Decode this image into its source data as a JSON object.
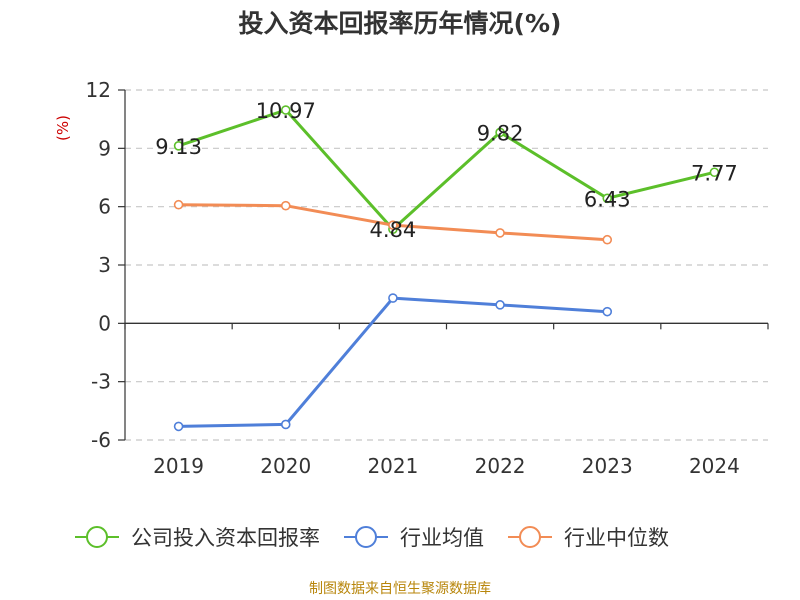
{
  "title": "投入资本回报率历年情况(%)",
  "source": "制图数据来自恒生聚源数据库",
  "chart_data": {
    "type": "line",
    "title": "投入资本回报率历年情况(%)",
    "ylabel": "(%)",
    "xlabel": "",
    "categories": [
      "2019",
      "2020",
      "2021",
      "2022",
      "2023",
      "2024"
    ],
    "ylim": [
      -6,
      12
    ],
    "yticks": [
      12,
      9,
      6,
      3,
      0,
      -3,
      -6
    ],
    "grid": true,
    "legend_position": "bottom",
    "series": [
      {
        "name": "公司投入资本回报率",
        "color": "#5cbf2a",
        "values": [
          9.13,
          10.97,
          4.84,
          9.82,
          6.43,
          7.77
        ],
        "show_labels": true
      },
      {
        "name": "行业均值",
        "color": "#4f7fd9",
        "values": [
          -5.3,
          -5.2,
          1.3,
          0.95,
          0.6,
          null
        ],
        "show_labels": false
      },
      {
        "name": "行业中位数",
        "color": "#f28c55",
        "values": [
          6.1,
          6.05,
          5.05,
          4.65,
          4.3,
          null
        ],
        "show_labels": false
      }
    ]
  }
}
